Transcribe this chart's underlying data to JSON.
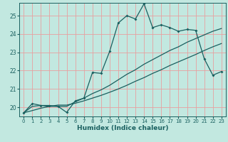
{
  "xlabel": "Humidex (Indice chaleur)",
  "ylabel": "",
  "bg_color": "#c2e8e0",
  "plot_bg_color": "#c2e8e0",
  "line_color": "#1a6060",
  "grid_color_v": "#e8a0a0",
  "grid_color_h": "#e8a0a0",
  "xlim": [
    -0.5,
    23.5
  ],
  "ylim": [
    19.5,
    25.7
  ],
  "xticks": [
    0,
    1,
    2,
    3,
    4,
    5,
    6,
    7,
    8,
    9,
    10,
    11,
    12,
    13,
    14,
    15,
    16,
    17,
    18,
    19,
    20,
    21,
    22,
    23
  ],
  "yticks": [
    20,
    21,
    22,
    23,
    24,
    25
  ],
  "main_x": [
    0,
    1,
    2,
    3,
    4,
    5,
    6,
    7,
    8,
    9,
    10,
    11,
    12,
    13,
    14,
    15,
    16,
    17,
    18,
    19,
    20,
    21,
    22,
    23
  ],
  "main_y": [
    19.7,
    20.2,
    20.1,
    20.1,
    20.05,
    19.72,
    20.35,
    20.5,
    21.9,
    21.85,
    23.05,
    24.6,
    25.0,
    24.82,
    25.65,
    24.35,
    24.5,
    24.35,
    24.15,
    24.25,
    24.2,
    22.65,
    21.75,
    21.95
  ],
  "line2_x": [
    0,
    1,
    2,
    3,
    4,
    5,
    6,
    7,
    8,
    9,
    10,
    11,
    12,
    13,
    14,
    15,
    16,
    17,
    18,
    19,
    20,
    21,
    22,
    23
  ],
  "line2_y": [
    19.7,
    20.05,
    20.1,
    20.05,
    20.05,
    20.05,
    20.3,
    20.5,
    20.75,
    20.95,
    21.2,
    21.5,
    21.8,
    22.05,
    22.35,
    22.6,
    22.85,
    23.1,
    23.3,
    23.55,
    23.75,
    23.95,
    24.15,
    24.3
  ],
  "line3_x": [
    0,
    1,
    2,
    3,
    4,
    5,
    6,
    7,
    8,
    9,
    10,
    11,
    12,
    13,
    14,
    15,
    16,
    17,
    18,
    19,
    20,
    21,
    22,
    23
  ],
  "line3_y": [
    19.7,
    19.82,
    19.95,
    20.05,
    20.12,
    20.12,
    20.22,
    20.35,
    20.5,
    20.65,
    20.82,
    21.0,
    21.2,
    21.42,
    21.62,
    21.85,
    22.05,
    22.28,
    22.48,
    22.68,
    22.88,
    23.1,
    23.3,
    23.48
  ]
}
